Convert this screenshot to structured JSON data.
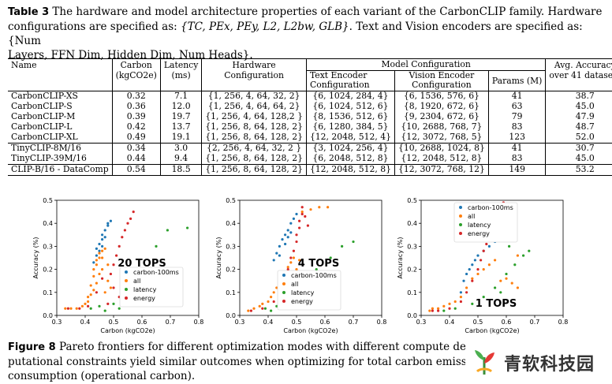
{
  "table_caption": {
    "label": "Table 3",
    "line1": "The hardware and model architecture properties of each variant of the CarbonCLIP family. Hardware",
    "line2_prefix": "configurations are specified as: ",
    "line2_hw_math": "{TC, PEx, PEy, L2, L2bw, GLB}",
    "line2_mid": ". Text and Vision encoders are specified as: ",
    "line2_enc_math": "{Num",
    "line3": "Layers, FFN Dim, Hidden Dim, Num Heads}."
  },
  "table": {
    "headers": {
      "name": "Name",
      "carbon": "Carbon",
      "carbon_unit": "(kgCO2e)",
      "latency": "Latency",
      "latency_unit": "(ms)",
      "hardware": "Hardware",
      "hardware2": "Configuration",
      "model_config": "Model Configuration",
      "text_enc": "Text Encoder",
      "text_enc2": "Configuration",
      "vision_enc": "Vision Encoder",
      "vision_enc2": "Configuration",
      "params": "Params (M)",
      "avg_acc": "Avg. Accuracy",
      "avg_acc2": "over 41 datasets"
    },
    "rows": [
      {
        "name": "CarbonCLIP-XS",
        "carbon": "0.32",
        "latency": "7.1",
        "hw": "{1, 256, 4, 64, 32, 2}",
        "text": "{6, 1024, 284, 4}",
        "vision": "{6, 1536, 576, 6}",
        "params": "41",
        "acc": "38.7"
      },
      {
        "name": "CarbonCLIP-S",
        "carbon": "0.36",
        "latency": "12.0",
        "hw": "{1, 256, 4, 64, 64, 2}",
        "text": "{6, 1024, 512, 6}",
        "vision": "{8, 1920, 672, 6}",
        "params": "63",
        "acc": "45.0"
      },
      {
        "name": "CarbonCLIP-M",
        "carbon": "0.39",
        "latency": "19.7",
        "hw": "{1, 256, 4, 64, 128,2 }",
        "text": "{8, 1536, 512, 6}",
        "vision": "{9, 2304, 672, 6}",
        "params": "79",
        "acc": "47.9"
      },
      {
        "name": "CarbonCLIP-L",
        "carbon": "0.42",
        "latency": "13.7",
        "hw": "{1, 256, 8, 64, 128, 2}",
        "text": "{6, 1280, 384, 5}",
        "vision": "{10, 2688, 768, 7}",
        "params": "83",
        "acc": "48.7"
      },
      {
        "name": "CarbonCLIP-XL",
        "carbon": "0.49",
        "latency": "19.1",
        "hw": "{1, 256, 8, 64, 128, 2}",
        "text": "{12, 2048, 512, 4}",
        "vision": "{12, 3072, 768, 5}",
        "params": "123",
        "acc": "52.0"
      },
      {
        "name": "TinyCLIP-8M/16",
        "carbon": "0.34",
        "latency": "3.0",
        "hw": "{2, 256, 4, 64, 32, 2 }",
        "text": "{3, 1024, 256, 4}",
        "vision": "{10, 2688, 1024, 8}",
        "params": "41",
        "acc": "30.7"
      },
      {
        "name": "TinyCLIP-39M/16",
        "carbon": "0.44",
        "latency": "9.4",
        "hw": "{1, 256, 8, 64, 128, 2}",
        "text": "{6, 2048, 512, 8}",
        "vision": "{12, 2048, 512, 8}",
        "params": "83",
        "acc": "45.0"
      },
      {
        "name": "CLIP-B/16 - DataComp",
        "carbon": "0.54",
        "latency": "18.5",
        "hw": "{1, 256, 8, 64, 128, 2}",
        "text": "{12, 2048, 512, 8}",
        "vision": "{12, 3072, 768, 12}",
        "params": "149",
        "acc": "53.2"
      }
    ]
  },
  "colors": {
    "carbon-100ms": "#1f77b4",
    "all": "#ff7f0e",
    "latency": "#2ca02c",
    "energy": "#d62728"
  },
  "chart_data": [
    {
      "type": "scatter",
      "annotation": "20 TOPS",
      "xlabel": "Carbon (kgCO2e)",
      "ylabel": "Accuracy (%)",
      "xlim": [
        0.3,
        0.8
      ],
      "ylim": [
        0.0,
        0.5
      ],
      "xticks": [
        "0.3",
        "0.4",
        "0.5",
        "0.6",
        "0.7",
        "0.8"
      ],
      "yticks": [
        "0.0",
        "0.1",
        "0.2",
        "0.3",
        "0.4",
        "0.5"
      ],
      "legend_position": "center-right",
      "series": [
        {
          "name": "carbon-100ms",
          "points": [
            [
              0.43,
              0.23
            ],
            [
              0.44,
              0.26
            ],
            [
              0.44,
              0.29
            ],
            [
              0.45,
              0.31
            ],
            [
              0.46,
              0.33
            ],
            [
              0.46,
              0.35
            ],
            [
              0.47,
              0.37
            ],
            [
              0.48,
              0.39
            ],
            [
              0.48,
              0.4
            ],
            [
              0.45,
              0.28
            ],
            [
              0.46,
              0.3
            ],
            [
              0.47,
              0.34
            ],
            [
              0.49,
              0.41
            ]
          ]
        },
        {
          "name": "all",
          "points": [
            [
              0.33,
              0.03
            ],
            [
              0.35,
              0.03
            ],
            [
              0.37,
              0.03
            ],
            [
              0.39,
              0.04
            ],
            [
              0.4,
              0.05
            ],
            [
              0.41,
              0.06
            ],
            [
              0.42,
              0.09
            ],
            [
              0.42,
              0.13
            ],
            [
              0.43,
              0.17
            ],
            [
              0.43,
              0.2
            ],
            [
              0.44,
              0.22
            ],
            [
              0.44,
              0.24
            ],
            [
              0.45,
              0.25
            ],
            [
              0.45,
              0.27
            ],
            [
              0.46,
              0.25
            ],
            [
              0.46,
              0.28
            ],
            [
              0.47,
              0.29
            ],
            [
              0.48,
              0.22
            ],
            [
              0.48,
              0.15
            ],
            [
              0.47,
              0.1
            ],
            [
              0.49,
              0.12
            ],
            [
              0.45,
              0.18
            ],
            [
              0.44,
              0.14
            ],
            [
              0.46,
              0.2
            ],
            [
              0.43,
              0.11
            ],
            [
              0.41,
              0.08
            ]
          ]
        },
        {
          "name": "latency",
          "points": [
            [
              0.42,
              0.03
            ],
            [
              0.45,
              0.04
            ],
            [
              0.47,
              0.02
            ],
            [
              0.5,
              0.05
            ],
            [
              0.52,
              0.03
            ],
            [
              0.56,
              0.08
            ],
            [
              0.6,
              0.12
            ],
            [
              0.62,
              0.2
            ],
            [
              0.65,
              0.3
            ],
            [
              0.69,
              0.37
            ],
            [
              0.76,
              0.38
            ],
            [
              0.58,
              0.05
            ]
          ]
        },
        {
          "name": "energy",
          "points": [
            [
              0.34,
              0.03
            ],
            [
              0.38,
              0.03
            ],
            [
              0.41,
              0.04
            ],
            [
              0.44,
              0.1
            ],
            [
              0.46,
              0.16
            ],
            [
              0.48,
              0.05
            ],
            [
              0.5,
              0.22
            ],
            [
              0.51,
              0.26
            ],
            [
              0.52,
              0.3
            ],
            [
              0.53,
              0.34
            ],
            [
              0.54,
              0.37
            ],
            [
              0.55,
              0.4
            ],
            [
              0.56,
              0.42
            ],
            [
              0.57,
              0.45
            ],
            [
              0.49,
              0.18
            ],
            [
              0.52,
              0.08
            ],
            [
              0.5,
              0.12
            ]
          ]
        }
      ]
    },
    {
      "type": "scatter",
      "annotation": "4 TOPS",
      "xlabel": "Carbon (kgCO2e)",
      "ylabel": "Accuracy (%)",
      "xlim": [
        0.3,
        0.8
      ],
      "ylim": [
        0.0,
        0.5
      ],
      "xticks": [
        "0.3",
        "0.4",
        "0.5",
        "0.6",
        "0.7",
        "0.8"
      ],
      "yticks": [
        "0.0",
        "0.1",
        "0.2",
        "0.3",
        "0.4",
        "0.5"
      ],
      "legend_position": "lower-right",
      "series": [
        {
          "name": "carbon-100ms",
          "points": [
            [
              0.42,
              0.24
            ],
            [
              0.43,
              0.27
            ],
            [
              0.44,
              0.3
            ],
            [
              0.45,
              0.33
            ],
            [
              0.46,
              0.35
            ],
            [
              0.47,
              0.37
            ],
            [
              0.48,
              0.4
            ],
            [
              0.49,
              0.42
            ],
            [
              0.5,
              0.44
            ],
            [
              0.44,
              0.26
            ],
            [
              0.46,
              0.31
            ],
            [
              0.47,
              0.34
            ],
            [
              0.48,
              0.36
            ]
          ]
        },
        {
          "name": "all",
          "points": [
            [
              0.33,
              0.02
            ],
            [
              0.35,
              0.03
            ],
            [
              0.37,
              0.04
            ],
            [
              0.38,
              0.05
            ],
            [
              0.4,
              0.06
            ],
            [
              0.41,
              0.08
            ],
            [
              0.42,
              0.1
            ],
            [
              0.43,
              0.12
            ],
            [
              0.44,
              0.14
            ],
            [
              0.45,
              0.16
            ],
            [
              0.46,
              0.18
            ],
            [
              0.47,
              0.21
            ],
            [
              0.48,
              0.23
            ],
            [
              0.49,
              0.25
            ],
            [
              0.52,
              0.45
            ],
            [
              0.55,
              0.46
            ],
            [
              0.58,
              0.47
            ],
            [
              0.61,
              0.47
            ],
            [
              0.44,
              0.05
            ],
            [
              0.46,
              0.08
            ],
            [
              0.5,
              0.2
            ],
            [
              0.51,
              0.24
            ]
          ]
        },
        {
          "name": "latency",
          "points": [
            [
              0.39,
              0.03
            ],
            [
              0.41,
              0.02
            ],
            [
              0.43,
              0.04
            ],
            [
              0.45,
              0.06
            ],
            [
              0.48,
              0.1
            ],
            [
              0.51,
              0.12
            ],
            [
              0.54,
              0.15
            ],
            [
              0.57,
              0.2
            ],
            [
              0.62,
              0.25
            ],
            [
              0.66,
              0.3
            ],
            [
              0.7,
              0.32
            ]
          ]
        },
        {
          "name": "energy",
          "points": [
            [
              0.34,
              0.02
            ],
            [
              0.38,
              0.03
            ],
            [
              0.42,
              0.06
            ],
            [
              0.44,
              0.1
            ],
            [
              0.46,
              0.14
            ],
            [
              0.47,
              0.2
            ],
            [
              0.48,
              0.25
            ],
            [
              0.49,
              0.28
            ],
            [
              0.5,
              0.32
            ],
            [
              0.5,
              0.35
            ],
            [
              0.51,
              0.38
            ],
            [
              0.51,
              0.41
            ],
            [
              0.52,
              0.44
            ],
            [
              0.52,
              0.47
            ],
            [
              0.53,
              0.43
            ],
            [
              0.54,
              0.39
            ]
          ]
        }
      ]
    },
    {
      "type": "scatter",
      "annotation": "1 TOPS",
      "xlabel": "Carbon (kgCO2e)",
      "ylabel": "Accuracy (%)",
      "xlim": [
        0.3,
        0.8
      ],
      "ylim": [
        0.0,
        0.5
      ],
      "xticks": [
        "0.3",
        "0.4",
        "0.5",
        "0.6",
        "0.7",
        "0.8"
      ],
      "yticks": [
        "0.0",
        "0.1",
        "0.2",
        "0.3",
        "0.4",
        "0.5"
      ],
      "legend_position": "top-right",
      "series": [
        {
          "name": "carbon-100ms",
          "points": [
            [
              0.44,
              0.1
            ],
            [
              0.45,
              0.15
            ],
            [
              0.46,
              0.18
            ],
            [
              0.47,
              0.2
            ],
            [
              0.48,
              0.22
            ],
            [
              0.49,
              0.24
            ],
            [
              0.5,
              0.26
            ],
            [
              0.52,
              0.28
            ],
            [
              0.54,
              0.3
            ],
            [
              0.56,
              0.32
            ]
          ]
        },
        {
          "name": "all",
          "points": [
            [
              0.33,
              0.02
            ],
            [
              0.34,
              0.03
            ],
            [
              0.36,
              0.03
            ],
            [
              0.38,
              0.04
            ],
            [
              0.4,
              0.05
            ],
            [
              0.42,
              0.06
            ],
            [
              0.44,
              0.08
            ],
            [
              0.46,
              0.12
            ],
            [
              0.48,
              0.16
            ],
            [
              0.5,
              0.18
            ],
            [
              0.52,
              0.2
            ],
            [
              0.54,
              0.22
            ],
            [
              0.56,
              0.24
            ],
            [
              0.58,
              0.15
            ],
            [
              0.6,
              0.16
            ],
            [
              0.62,
              0.14
            ],
            [
              0.64,
              0.12
            ],
            [
              0.6,
              0.33
            ],
            [
              0.62,
              0.36
            ],
            [
              0.64,
              0.26
            ]
          ]
        },
        {
          "name": "latency",
          "points": [
            [
              0.38,
              0.02
            ],
            [
              0.42,
              0.03
            ],
            [
              0.48,
              0.05
            ],
            [
              0.52,
              0.08
            ],
            [
              0.56,
              0.12
            ],
            [
              0.6,
              0.18
            ],
            [
              0.63,
              0.22
            ],
            [
              0.66,
              0.26
            ],
            [
              0.68,
              0.28
            ],
            [
              0.61,
              0.3
            ],
            [
              0.58,
              0.1
            ]
          ]
        },
        {
          "name": "energy",
          "points": [
            [
              0.34,
              0.02
            ],
            [
              0.36,
              0.02
            ],
            [
              0.4,
              0.03
            ],
            [
              0.44,
              0.06
            ],
            [
              0.46,
              0.1
            ],
            [
              0.48,
              0.15
            ],
            [
              0.5,
              0.2
            ],
            [
              0.51,
              0.24
            ],
            [
              0.52,
              0.28
            ],
            [
              0.53,
              0.31
            ],
            [
              0.54,
              0.35
            ],
            [
              0.55,
              0.38
            ],
            [
              0.56,
              0.41
            ],
            [
              0.57,
              0.44
            ],
            [
              0.58,
              0.47
            ],
            [
              0.59,
              0.49
            ],
            [
              0.6,
              0.46
            ],
            [
              0.62,
              0.42
            ]
          ]
        }
      ]
    }
  ],
  "figure_caption": {
    "label": "Figure 8",
    "line1": "Pareto frontiers for different optimization modes with different compute desi",
    "line2": "putational constraints yield similar outcomes when optimizing for total carbon emissio",
    "line3": "consumption (operational carbon)."
  },
  "watermark": {
    "text": "青软科技园",
    "logo": "sprout-logo-icon"
  }
}
